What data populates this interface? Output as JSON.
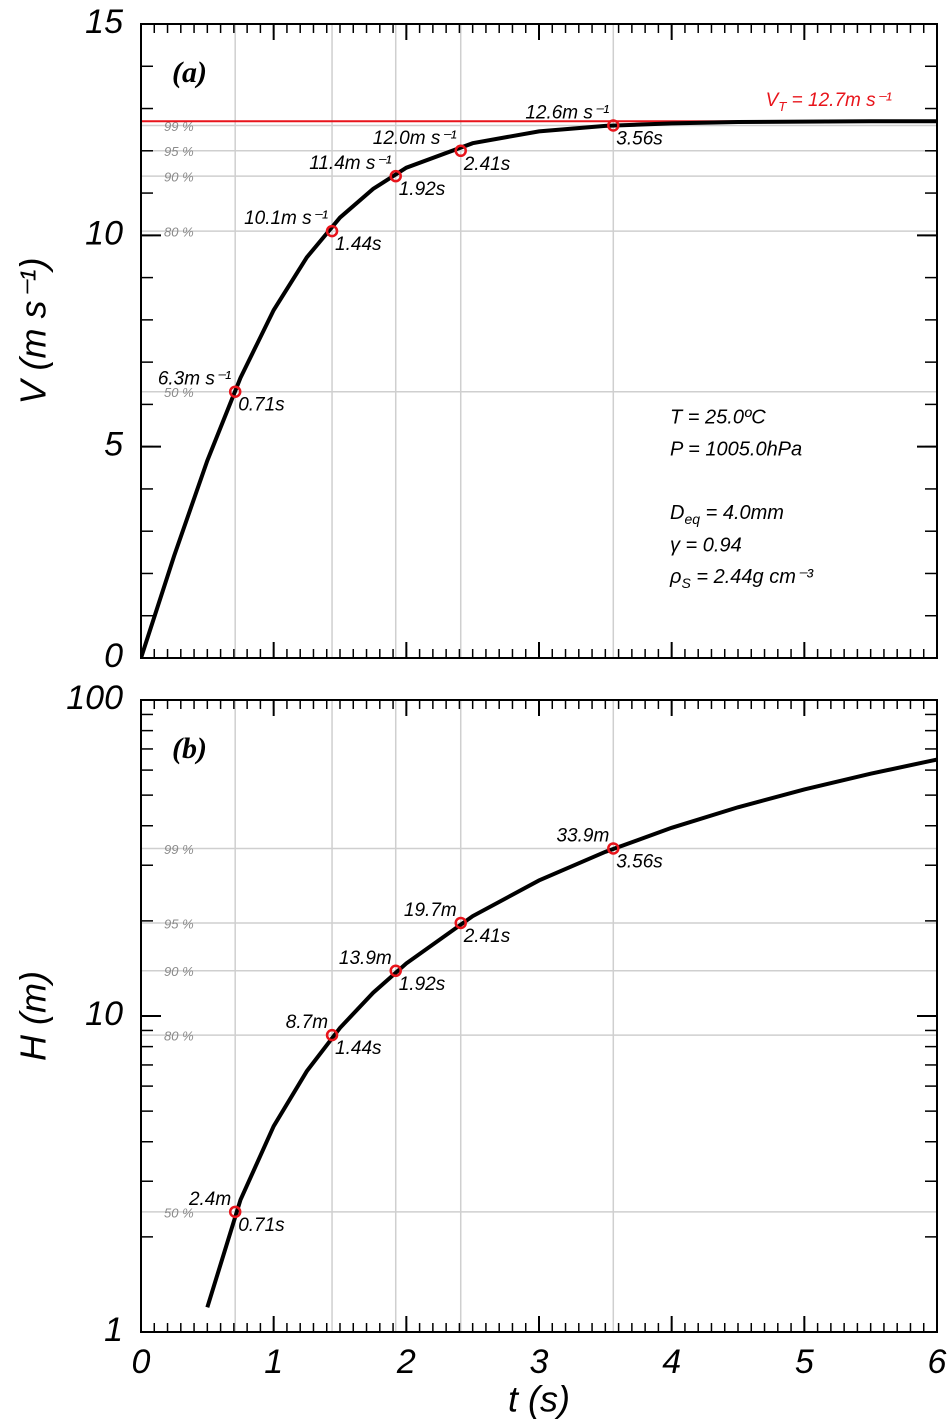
{
  "chart_data": [
    {
      "type": "line",
      "panel_label": "(a)",
      "ylabel": "V (m s⁻¹)",
      "x": [
        0,
        0.25,
        0.5,
        0.75,
        1,
        1.25,
        1.5,
        1.75,
        2,
        2.5,
        3,
        3.5,
        4,
        4.5,
        5,
        5.5,
        6
      ],
      "values": [
        0,
        2.42,
        4.67,
        6.63,
        8.23,
        9.48,
        10.42,
        11.1,
        11.6,
        12.18,
        12.46,
        12.59,
        12.65,
        12.68,
        12.69,
        12.7,
        12.7
      ],
      "color": "#000000",
      "xlim": [
        0,
        6
      ],
      "xticks": [
        0,
        1,
        2,
        3,
        4,
        5,
        6
      ],
      "x_minor_step": 0.1,
      "show_xtick_labels": false,
      "ylim": [
        0,
        15
      ],
      "yticks": [
        0,
        5,
        10,
        15
      ],
      "y_minor_step": 1,
      "log_y": false,
      "markers": {
        "x": [
          0.71,
          1.44,
          1.92,
          2.41,
          3.56
        ],
        "values": [
          6.3,
          10.1,
          11.4,
          12.0,
          12.6
        ],
        "value_labels": [
          "6.3m s⁻¹",
          "10.1m s⁻¹",
          "11.4m s⁻¹",
          "12.0m s⁻¹",
          "12.6m s⁻¹"
        ],
        "x_labels": [
          "0.71s",
          "1.44s",
          "1.92s",
          "2.41s",
          "3.56s"
        ],
        "percent_labels": [
          "50 %",
          "80 %",
          "90 %",
          "95 %",
          "99 %"
        ],
        "color": "#e8141b"
      },
      "reference_line": {
        "value": 12.7,
        "main": "V",
        "sub": "T",
        "rest": " = 12.7m s⁻¹",
        "color": "#e8141b"
      },
      "annotations": [
        {
          "text": "T = 25.0ºC"
        },
        {
          "text": "P = 1005.0hPa"
        },
        {
          "main": "D",
          "sub": "eq",
          "rest": " = 4.0mm"
        },
        {
          "text": "γ = 0.94"
        },
        {
          "main": "ρ",
          "sub": "S",
          "rest": " = 2.44g cm⁻³"
        }
      ]
    },
    {
      "type": "line",
      "panel_label": "(b)",
      "ylabel": "H (m)",
      "xlabel": "t (s)",
      "x": [
        0.5,
        0.75,
        1,
        1.25,
        1.5,
        1.75,
        2,
        2.5,
        3,
        3.5,
        4,
        4.5,
        5,
        5.5,
        6
      ],
      "values": [
        1.197,
        2.62,
        4.48,
        6.69,
        9.17,
        11.85,
        14.67,
        20.7,
        26.85,
        33.08,
        39.41,
        45.77,
        52.11,
        58.45,
        64.81
      ],
      "color": "#000000",
      "xlim": [
        0,
        6
      ],
      "xticks": [
        0,
        1,
        2,
        3,
        4,
        5,
        6
      ],
      "x_minor_step": 0.1,
      "show_xtick_labels": true,
      "ylim": [
        1,
        100
      ],
      "yticks": [
        1,
        10,
        100
      ],
      "log_y": true,
      "markers": {
        "x": [
          0.71,
          1.44,
          1.92,
          2.41,
          3.56
        ],
        "values": [
          2.4,
          8.7,
          13.9,
          19.7,
          33.9
        ],
        "value_labels": [
          "2.4m",
          "8.7m",
          "13.9m",
          "19.7m",
          "33.9m"
        ],
        "x_labels": [
          "0.71s",
          "1.44s",
          "1.92s",
          "2.41s",
          "3.56s"
        ],
        "percent_labels": [
          "50 %",
          "80 %",
          "90 %",
          "95 %",
          "99 %"
        ],
        "color": "#e8141b"
      }
    }
  ]
}
